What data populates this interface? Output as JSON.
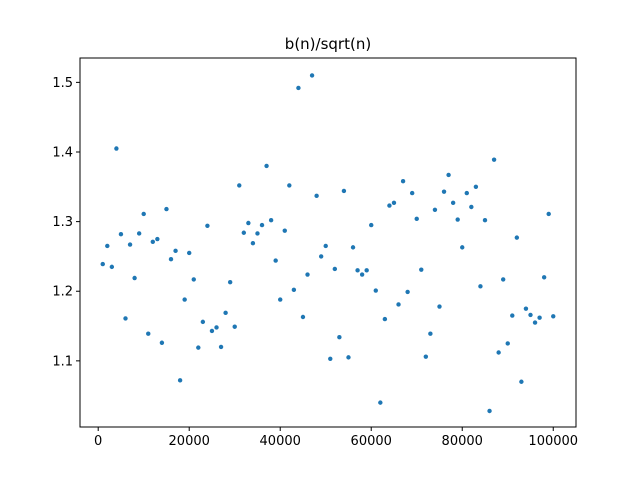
{
  "chart_data": {
    "type": "scatter",
    "title": "b(n)/sqrt(n)",
    "xlabel": "",
    "ylabel": "",
    "xlim": [
      -4000,
      105000
    ],
    "ylim": [
      1.005,
      1.535
    ],
    "xticks": [
      0,
      20000,
      40000,
      60000,
      80000,
      100000
    ],
    "xtick_labels": [
      "0",
      "20000",
      "40000",
      "60000",
      "80000",
      "100000"
    ],
    "yticks": [
      1.1,
      1.2,
      1.3,
      1.4,
      1.5
    ],
    "ytick_labels": [
      "1.1",
      "1.2",
      "1.3",
      "1.4",
      "1.5"
    ],
    "grid": false,
    "marker_color": "#1f77b4",
    "x": [
      1000,
      2000,
      3000,
      4000,
      5000,
      6000,
      7000,
      8000,
      9000,
      10000,
      11000,
      12000,
      13000,
      14000,
      15000,
      16000,
      17000,
      18000,
      19000,
      20000,
      21000,
      22000,
      23000,
      24000,
      25000,
      26000,
      27000,
      28000,
      29000,
      30000,
      31000,
      32000,
      33000,
      34000,
      35000,
      36000,
      37000,
      38000,
      39000,
      40000,
      41000,
      42000,
      43000,
      44000,
      45000,
      46000,
      47000,
      48000,
      49000,
      50000,
      51000,
      52000,
      53000,
      54000,
      55000,
      56000,
      57000,
      58000,
      59000,
      60000,
      61000,
      62000,
      63000,
      64000,
      65000,
      66000,
      67000,
      68000,
      69000,
      70000,
      71000,
      72000,
      73000,
      74000,
      75000,
      76000,
      77000,
      78000,
      79000,
      80000,
      81000,
      82000,
      83000,
      84000,
      85000,
      86000,
      87000,
      88000,
      89000,
      90000,
      91000,
      92000,
      93000,
      94000,
      95000,
      96000,
      97000,
      98000,
      99000,
      100000
    ],
    "y": [
      1.239,
      1.265,
      1.235,
      1.405,
      1.282,
      1.161,
      1.267,
      1.219,
      1.283,
      1.311,
      1.139,
      1.271,
      1.275,
      1.126,
      1.318,
      1.246,
      1.258,
      1.072,
      1.188,
      1.255,
      1.217,
      1.119,
      1.156,
      1.294,
      1.143,
      1.148,
      1.12,
      1.169,
      1.213,
      1.149,
      1.352,
      1.284,
      1.298,
      1.269,
      1.283,
      1.295,
      1.38,
      1.302,
      1.244,
      1.188,
      1.287,
      1.352,
      1.202,
      1.492,
      1.163,
      1.224,
      1.51,
      1.337,
      1.25,
      1.265,
      1.103,
      1.232,
      1.134,
      1.344,
      1.105,
      1.263,
      1.23,
      1.224,
      1.23,
      1.295,
      1.201,
      1.04,
      1.16,
      1.323,
      1.327,
      1.181,
      1.358,
      1.199,
      1.341,
      1.304,
      1.231,
      1.106,
      1.139,
      1.317,
      1.178,
      1.343,
      1.367,
      1.327,
      1.303,
      1.263,
      1.341,
      1.321,
      1.35,
      1.207,
      1.302,
      1.028,
      1.389,
      1.112,
      1.217,
      1.125,
      1.165,
      1.277,
      1.07,
      1.175,
      1.166,
      1.155,
      1.162,
      1.22,
      1.311,
      1.164
    ]
  }
}
